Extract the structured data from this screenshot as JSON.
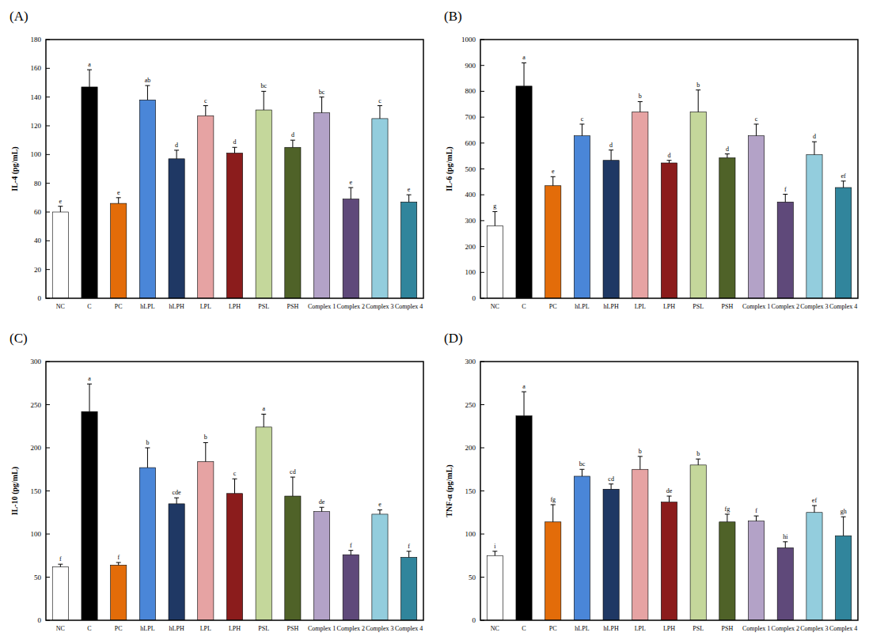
{
  "chart_data": [
    {
      "type": "bar",
      "title": "(A)",
      "y_label": "IL-4 (pg/mL)",
      "categories": [
        "NC",
        "C",
        "PC",
        "hLPL",
        "hLPH",
        "LPL",
        "LPH",
        "PSL",
        "PSH",
        "Complex 1",
        "Complex 2",
        "Complex 3",
        "Complex 4"
      ],
      "values": [
        60,
        147,
        66,
        138,
        97,
        127,
        101,
        131,
        105,
        129,
        69,
        125,
        67
      ],
      "errors": [
        4,
        12,
        4,
        10,
        6,
        7,
        4,
        13,
        5,
        11,
        8,
        9,
        5
      ],
      "annotations": [
        "e",
        "a",
        "e",
        "ab",
        "d",
        "c",
        "d",
        "bc",
        "d",
        "bc",
        "e",
        "c",
        "e"
      ],
      "colors": [
        "#ffffff",
        "#000000",
        "#e36c09",
        "#4a86d8",
        "#1f3864",
        "#e6a3a3",
        "#8b1c1c",
        "#c4d79b",
        "#4f6228",
        "#b3a2c7",
        "#5f497a",
        "#93cddd",
        "#31859c"
      ],
      "ylim": [
        0,
        180
      ],
      "yticks": [
        0,
        20,
        40,
        60,
        80,
        100,
        120,
        140,
        160,
        180
      ],
      "grid": false
    },
    {
      "type": "bar",
      "title": "(B)",
      "y_label": "IL-6 (pg/mL)",
      "categories": [
        "NC",
        "C",
        "PC",
        "hLPL",
        "hLPH",
        "LPL",
        "LPH",
        "PSL",
        "PSH",
        "Complex 1",
        "Complex 2",
        "Complex 3",
        "Complex 4"
      ],
      "values": [
        280,
        820,
        435,
        628,
        533,
        720,
        523,
        720,
        543,
        628,
        372,
        555,
        428
      ],
      "errors": [
        55,
        90,
        35,
        45,
        40,
        40,
        10,
        85,
        15,
        45,
        30,
        50,
        25
      ],
      "annotations": [
        "g",
        "a",
        "e",
        "c",
        "d",
        "b",
        "d",
        "b",
        "d",
        "c",
        "f",
        "d",
        "ef"
      ],
      "colors": [
        "#ffffff",
        "#000000",
        "#e36c09",
        "#4a86d8",
        "#1f3864",
        "#e6a3a3",
        "#8b1c1c",
        "#c4d79b",
        "#4f6228",
        "#b3a2c7",
        "#5f497a",
        "#93cddd",
        "#31859c"
      ],
      "ylim": [
        0,
        1000
      ],
      "yticks": [
        0,
        100,
        200,
        300,
        400,
        500,
        600,
        700,
        800,
        900,
        1000
      ],
      "grid": false
    },
    {
      "type": "bar",
      "title": "(C)",
      "y_label": "IL-10 (pg/mL)",
      "categories": [
        "NC",
        "C",
        "PC",
        "hLPL",
        "hLPH",
        "LPL",
        "LPH",
        "PSL",
        "PSH",
        "Complex 1",
        "Complex 2",
        "Complex 3",
        "Complex 4"
      ],
      "values": [
        62,
        242,
        64,
        177,
        135,
        184,
        147,
        224,
        144,
        126,
        76,
        123,
        73
      ],
      "errors": [
        3,
        32,
        3,
        23,
        7,
        22,
        17,
        15,
        22,
        5,
        5,
        5,
        7
      ],
      "annotations": [
        "f",
        "a",
        "f",
        "b",
        "cde",
        "b",
        "c",
        "a",
        "cd",
        "de",
        "f",
        "e",
        "f"
      ],
      "colors": [
        "#ffffff",
        "#000000",
        "#e36c09",
        "#4a86d8",
        "#1f3864",
        "#e6a3a3",
        "#8b1c1c",
        "#c4d79b",
        "#4f6228",
        "#b3a2c7",
        "#5f497a",
        "#93cddd",
        "#31859c"
      ],
      "ylim": [
        0,
        300
      ],
      "yticks": [
        0,
        50,
        100,
        150,
        200,
        250,
        300
      ],
      "grid": false
    },
    {
      "type": "bar",
      "title": "(D)",
      "y_label": "TNF-α (pg/mL)",
      "categories": [
        "NC",
        "C",
        "PC",
        "hLPL",
        "hLPH",
        "LPL",
        "LPH",
        "PSL",
        "PSH",
        "Complex 1",
        "Complex 2",
        "Complex 3",
        "Complex 4"
      ],
      "values": [
        75,
        237,
        114,
        167,
        152,
        175,
        137,
        180,
        114,
        115,
        84,
        125,
        98
      ],
      "errors": [
        5,
        28,
        20,
        8,
        6,
        15,
        7,
        7,
        9,
        6,
        7,
        8,
        22
      ],
      "annotations": [
        "i",
        "a",
        "fg",
        "bc",
        "cd",
        "b",
        "de",
        "b",
        "fg",
        "f",
        "hi",
        "ef",
        "gh"
      ],
      "colors": [
        "#ffffff",
        "#000000",
        "#e36c09",
        "#4a86d8",
        "#1f3864",
        "#e6a3a3",
        "#8b1c1c",
        "#c4d79b",
        "#4f6228",
        "#b3a2c7",
        "#5f497a",
        "#93cddd",
        "#31859c"
      ],
      "ylim": [
        0,
        300
      ],
      "yticks": [
        0,
        50,
        100,
        150,
        200,
        250,
        300
      ],
      "grid": false
    }
  ]
}
